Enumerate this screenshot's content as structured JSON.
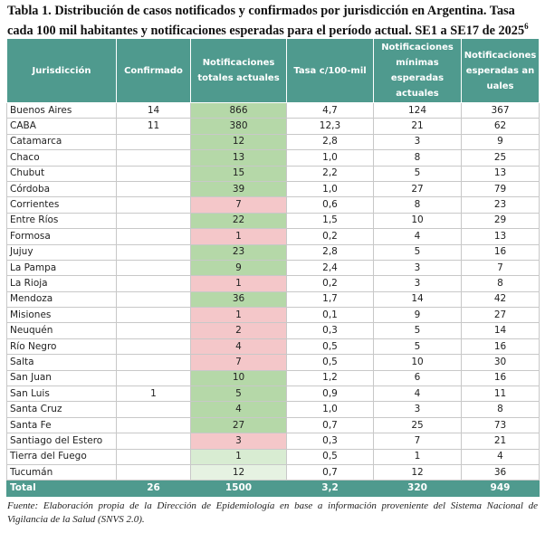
{
  "title": "Tabla 1. Distribución de casos notificados y confirmados por jurisdicción en Argentina. Tasa cada 100 mil habitantes y notificaciones esperadas para el período actual. SE1 a SE17 de 2025",
  "title_footnote_mark": "6",
  "table": {
    "header": [
      "Jurisdicción",
      "Confirmado",
      "Notificaciones totales actuales",
      "Tasa c/100-mil",
      "Notificaciones mínimas esperadas actuales",
      "Notificaciones esperadas anuales"
    ],
    "rows": [
      [
        "Buenos Aires",
        "14",
        "866",
        "4,7",
        "124",
        "367"
      ],
      [
        "CABA",
        "11",
        "380",
        "12,3",
        "21",
        "62"
      ],
      [
        "Catamarca",
        null,
        "12",
        "2,8",
        "3",
        "9"
      ],
      [
        "Chaco",
        null,
        "13",
        "1,0",
        "8",
        "25"
      ],
      [
        "Chubut",
        null,
        "15",
        "2,2",
        "5",
        "13"
      ],
      [
        "Córdoba",
        null,
        "39",
        "1,0",
        "27",
        "79"
      ],
      [
        "Corrientes",
        null,
        "7",
        "0,6",
        "8",
        "23"
      ],
      [
        "Entre Ríos",
        null,
        "22",
        "1,5",
        "10",
        "29"
      ],
      [
        "Formosa",
        null,
        "1",
        "0,2",
        "4",
        "13"
      ],
      [
        "Jujuy",
        null,
        "23",
        "2,8",
        "5",
        "16"
      ],
      [
        "La Pampa",
        null,
        "9",
        "2,4",
        "3",
        "7"
      ],
      [
        "La Rioja",
        null,
        "1",
        "0,2",
        "3",
        "8"
      ],
      [
        "Mendoza",
        null,
        "36",
        "1,7",
        "14",
        "42"
      ],
      [
        "Misiones",
        null,
        "1",
        "0,1",
        "9",
        "27"
      ],
      [
        "Neuquén",
        null,
        "2",
        "0,3",
        "5",
        "14"
      ],
      [
        "Río Negro",
        null,
        "4",
        "0,5",
        "5",
        "16"
      ],
      [
        "Salta",
        null,
        "7",
        "0,5",
        "10",
        "30"
      ],
      [
        "San Juan",
        null,
        "10",
        "1,2",
        "6",
        "16"
      ],
      [
        "San Luis",
        "1",
        "5",
        "0,9",
        "4",
        "11"
      ],
      [
        "Santa Cruz",
        null,
        "4",
        "1,0",
        "3",
        "8"
      ],
      [
        "Santa Fe",
        null,
        "27",
        "0,7",
        "25",
        "73"
      ],
      [
        "Santiago del Estero",
        null,
        "3",
        "0,3",
        "7",
        "21"
      ],
      [
        "Tierra del Fuego",
        null,
        "1",
        "0,5",
        "1",
        "4"
      ],
      [
        "Tucumán",
        null,
        "12",
        "0,7",
        "12",
        "36"
      ]
    ],
    "highlight_colors": [
      "#b5d8a8",
      "#b5d8a8",
      "#b5d8a8",
      "#b5d8a8",
      "#b5d8a8",
      "#b5d8a8",
      "#f4c7c9",
      "#b5d8a8",
      "#f4c7c9",
      "#b5d8a8",
      "#b5d8a8",
      "#f4c7c9",
      "#b5d8a8",
      "#f4c7c9",
      "#f4c7c9",
      "#f4c7c9",
      "#f4c7c9",
      "#b5d8a8",
      "#b5d8a8",
      "#b5d8a8",
      "#b5d8a8",
      "#f4c7c9",
      "#d8ecd2",
      "#e6f2e2"
    ],
    "total": [
      "Total",
      "26",
      "1500",
      "3,2",
      "320",
      "949"
    ]
  },
  "footnote": "Fuente: Elaboración propia de la Dirección de Epidemiología en base a información proveniente del Sistema Nacional de Vigilancia de la Salud (SNVS 2.0)."
}
